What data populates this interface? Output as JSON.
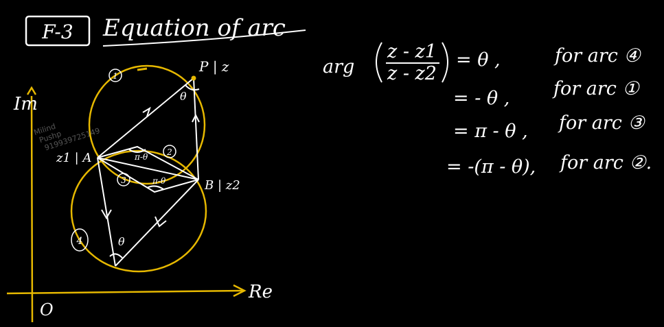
{
  "header": {
    "tag": "F-3",
    "title": "Equation of arc"
  },
  "diagram": {
    "axis_y_label": "Im",
    "axis_x_label": "Re",
    "origin_label": "O",
    "point_p_label": "P | z",
    "point_a_label": "z1 | A",
    "point_b_label": "B | z2",
    "arc_labels": [
      "1",
      "2",
      "3",
      "4"
    ],
    "angle_theta": "θ",
    "angle_pi_minus_theta_top": "π-θ",
    "angle_pi_minus_theta_bottom": "π-θ",
    "angle_theta_bottom": "θ",
    "watermark": [
      "Milind",
      "Pushp",
      "919939725149"
    ]
  },
  "equations": {
    "lhs_func": "arg",
    "lhs_numerator": "z - z1",
    "lhs_denominator": "z - z2",
    "rows": [
      {
        "rhs": "= θ ,",
        "note": "for arc ④"
      },
      {
        "rhs": "= - θ ,",
        "note": "for arc ①"
      },
      {
        "rhs": "= π - θ ,",
        "note": "for arc ③"
      },
      {
        "rhs": "= -(π - θ),",
        "note": "for arc ②."
      }
    ]
  },
  "colors": {
    "ink": "#ffffff",
    "circle": "#e6b800",
    "axis": "#e6b800"
  }
}
